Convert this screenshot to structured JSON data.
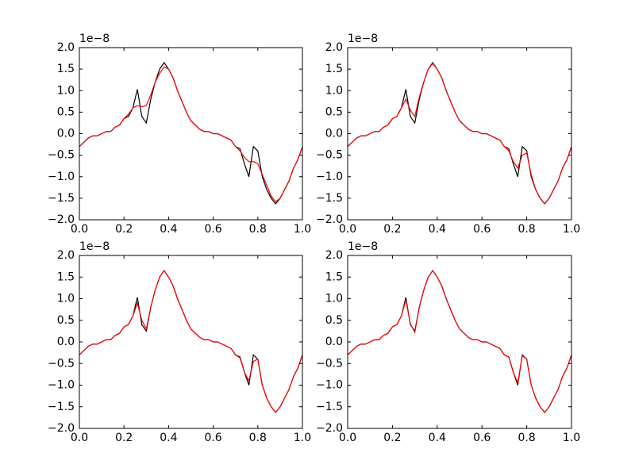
{
  "chart_data": [
    {
      "type": "line",
      "y_offset_label": "1e−8",
      "x": [
        0,
        0.02,
        0.04,
        0.06,
        0.08,
        0.1,
        0.12,
        0.14,
        0.16,
        0.18,
        0.2,
        0.22,
        0.24,
        0.26,
        0.28,
        0.3,
        0.32,
        0.34,
        0.36,
        0.38,
        0.4,
        0.42,
        0.44,
        0.46,
        0.48,
        0.5,
        0.52,
        0.54,
        0.56,
        0.58,
        0.6,
        0.62,
        0.64,
        0.66,
        0.68,
        0.7,
        0.72,
        0.74,
        0.76,
        0.78,
        0.8,
        0.82,
        0.84,
        0.86,
        0.88,
        0.9,
        0.92,
        0.94,
        0.96,
        0.98,
        1
      ],
      "xlim": [
        0,
        1
      ],
      "xticks": [
        {
          "value": 0,
          "label": "0.0"
        },
        0.2,
        0.4,
        0.6,
        0.8,
        {
          "value": 1,
          "label": "1.0"
        }
      ],
      "ylim": [
        -2,
        2
      ],
      "yticks": [
        {
          "value": -2,
          "label": "−2.0"
        },
        {
          "value": -1.5,
          "label": "−1.5"
        },
        {
          "value": -1,
          "label": "−1.0"
        },
        {
          "value": -0.5,
          "label": "−0.5"
        },
        {
          "value": 0,
          "label": "0.0"
        },
        0.5,
        {
          "value": 1,
          "label": "1.0"
        },
        1.5,
        {
          "value": 2,
          "label": "2.0"
        }
      ],
      "series": [
        {
          "color": "#000000",
          "values": [
            -0.3,
            -0.2,
            -0.1,
            -0.05,
            -0.05,
            0,
            0.05,
            0.05,
            0.15,
            0.2,
            0.35,
            0.4,
            0.6,
            1.03,
            0.4,
            0.25,
            0.8,
            1.2,
            1.5,
            1.65,
            1.5,
            1.3,
            1,
            0.75,
            0.5,
            0.3,
            0.2,
            0.1,
            0.05,
            0.05,
            0,
            0,
            -0.05,
            -0.1,
            -0.15,
            -0.3,
            -0.35,
            -0.7,
            -1,
            -0.3,
            -0.4,
            -1,
            -1.3,
            -1.5,
            -1.63,
            -1.5,
            -1.3,
            -1.1,
            -0.8,
            -0.6,
            -0.3
          ]
        },
        {
          "color": "#ff0000",
          "values": [
            -0.3,
            -0.2,
            -0.1,
            -0.05,
            -0.05,
            0,
            0.05,
            0.05,
            0.15,
            0.2,
            0.35,
            0.45,
            0.6,
            0.65,
            0.63,
            0.65,
            0.9,
            1.2,
            1.4,
            1.55,
            1.5,
            1.3,
            1,
            0.75,
            0.5,
            0.3,
            0.2,
            0.1,
            0.05,
            0.05,
            0,
            0,
            -0.05,
            -0.1,
            -0.15,
            -0.3,
            -0.4,
            -0.55,
            -0.65,
            -0.65,
            -0.7,
            -0.95,
            -1.2,
            -1.45,
            -1.58,
            -1.5,
            -1.3,
            -1.1,
            -0.8,
            -0.6,
            -0.3
          ]
        }
      ]
    },
    {
      "type": "line",
      "y_offset_label": "1e−8",
      "x": [
        0,
        0.02,
        0.04,
        0.06,
        0.08,
        0.1,
        0.12,
        0.14,
        0.16,
        0.18,
        0.2,
        0.22,
        0.24,
        0.26,
        0.28,
        0.3,
        0.32,
        0.34,
        0.36,
        0.38,
        0.4,
        0.42,
        0.44,
        0.46,
        0.48,
        0.5,
        0.52,
        0.54,
        0.56,
        0.58,
        0.6,
        0.62,
        0.64,
        0.66,
        0.68,
        0.7,
        0.72,
        0.74,
        0.76,
        0.78,
        0.8,
        0.82,
        0.84,
        0.86,
        0.88,
        0.9,
        0.92,
        0.94,
        0.96,
        0.98,
        1
      ],
      "xlim": [
        0,
        1
      ],
      "xticks": [
        {
          "value": 0,
          "label": "0.0"
        },
        0.2,
        0.4,
        0.6,
        0.8,
        {
          "value": 1,
          "label": "1.0"
        }
      ],
      "ylim": [
        -2,
        2
      ],
      "yticks": [
        {
          "value": -2,
          "label": "−2.0"
        },
        {
          "value": -1.5,
          "label": "−1.5"
        },
        {
          "value": -1,
          "label": "−1.0"
        },
        {
          "value": -0.5,
          "label": "−0.5"
        },
        {
          "value": 0,
          "label": "0.0"
        },
        0.5,
        {
          "value": 1,
          "label": "1.0"
        },
        1.5,
        {
          "value": 2,
          "label": "2.0"
        }
      ],
      "series": [
        {
          "color": "#000000",
          "values": [
            -0.3,
            -0.2,
            -0.1,
            -0.05,
            -0.05,
            0,
            0.05,
            0.05,
            0.15,
            0.2,
            0.35,
            0.4,
            0.6,
            1.03,
            0.4,
            0.25,
            0.8,
            1.2,
            1.5,
            1.65,
            1.5,
            1.3,
            1,
            0.75,
            0.5,
            0.3,
            0.2,
            0.1,
            0.05,
            0.05,
            0,
            0,
            -0.05,
            -0.1,
            -0.15,
            -0.3,
            -0.35,
            -0.7,
            -1,
            -0.3,
            -0.4,
            -1,
            -1.3,
            -1.5,
            -1.63,
            -1.5,
            -1.3,
            -1.1,
            -0.8,
            -0.6,
            -0.3
          ]
        },
        {
          "color": "#ff0000",
          "values": [
            -0.3,
            -0.2,
            -0.1,
            -0.05,
            -0.05,
            0,
            0.05,
            0.05,
            0.15,
            0.2,
            0.35,
            0.4,
            0.6,
            0.8,
            0.55,
            0.4,
            0.85,
            1.2,
            1.5,
            1.63,
            1.5,
            1.3,
            1,
            0.75,
            0.5,
            0.3,
            0.2,
            0.1,
            0.05,
            0.05,
            0,
            0,
            -0.05,
            -0.1,
            -0.15,
            -0.3,
            -0.4,
            -0.65,
            -0.8,
            -0.5,
            -0.45,
            -0.95,
            -1.3,
            -1.5,
            -1.63,
            -1.5,
            -1.3,
            -1.1,
            -0.8,
            -0.6,
            -0.3
          ]
        }
      ]
    },
    {
      "type": "line",
      "y_offset_label": "1e−8",
      "x": [
        0,
        0.02,
        0.04,
        0.06,
        0.08,
        0.1,
        0.12,
        0.14,
        0.16,
        0.18,
        0.2,
        0.22,
        0.24,
        0.26,
        0.28,
        0.3,
        0.32,
        0.34,
        0.36,
        0.38,
        0.4,
        0.42,
        0.44,
        0.46,
        0.48,
        0.5,
        0.52,
        0.54,
        0.56,
        0.58,
        0.6,
        0.62,
        0.64,
        0.66,
        0.68,
        0.7,
        0.72,
        0.74,
        0.76,
        0.78,
        0.8,
        0.82,
        0.84,
        0.86,
        0.88,
        0.9,
        0.92,
        0.94,
        0.96,
        0.98,
        1
      ],
      "xlim": [
        0,
        1
      ],
      "xticks": [
        {
          "value": 0,
          "label": "0.0"
        },
        0.2,
        0.4,
        0.6,
        0.8,
        {
          "value": 1,
          "label": "1.0"
        }
      ],
      "ylim": [
        -2,
        2
      ],
      "yticks": [
        {
          "value": -2,
          "label": "−2.0"
        },
        {
          "value": -1.5,
          "label": "−1.5"
        },
        {
          "value": -1,
          "label": "−1.0"
        },
        {
          "value": -0.5,
          "label": "−0.5"
        },
        {
          "value": 0,
          "label": "0.0"
        },
        0.5,
        {
          "value": 1,
          "label": "1.0"
        },
        1.5,
        {
          "value": 2,
          "label": "2.0"
        }
      ],
      "series": [
        {
          "color": "#000000",
          "values": [
            -0.3,
            -0.2,
            -0.1,
            -0.05,
            -0.05,
            0,
            0.05,
            0.05,
            0.15,
            0.2,
            0.35,
            0.4,
            0.6,
            1.03,
            0.4,
            0.25,
            0.8,
            1.2,
            1.5,
            1.65,
            1.5,
            1.3,
            1,
            0.75,
            0.5,
            0.3,
            0.2,
            0.1,
            0.05,
            0.05,
            0,
            0,
            -0.05,
            -0.1,
            -0.15,
            -0.3,
            -0.35,
            -0.7,
            -1,
            -0.3,
            -0.4,
            -1,
            -1.3,
            -1.5,
            -1.63,
            -1.5,
            -1.3,
            -1.1,
            -0.8,
            -0.6,
            -0.3
          ]
        },
        {
          "color": "#ff0000",
          "values": [
            -0.3,
            -0.2,
            -0.1,
            -0.05,
            -0.05,
            0,
            0.05,
            0.05,
            0.15,
            0.2,
            0.35,
            0.4,
            0.6,
            0.9,
            0.5,
            0.3,
            0.8,
            1.2,
            1.5,
            1.65,
            1.5,
            1.3,
            1,
            0.75,
            0.5,
            0.3,
            0.2,
            0.1,
            0.05,
            0.05,
            0,
            0,
            -0.05,
            -0.1,
            -0.15,
            -0.3,
            -0.37,
            -0.7,
            -0.9,
            -0.45,
            -0.4,
            -1,
            -1.3,
            -1.5,
            -1.63,
            -1.5,
            -1.3,
            -1.1,
            -0.8,
            -0.6,
            -0.3
          ]
        }
      ]
    },
    {
      "type": "line",
      "y_offset_label": "1e−8",
      "x": [
        0,
        0.02,
        0.04,
        0.06,
        0.08,
        0.1,
        0.12,
        0.14,
        0.16,
        0.18,
        0.2,
        0.22,
        0.24,
        0.26,
        0.28,
        0.3,
        0.32,
        0.34,
        0.36,
        0.38,
        0.4,
        0.42,
        0.44,
        0.46,
        0.48,
        0.5,
        0.52,
        0.54,
        0.56,
        0.58,
        0.6,
        0.62,
        0.64,
        0.66,
        0.68,
        0.7,
        0.72,
        0.74,
        0.76,
        0.78,
        0.8,
        0.82,
        0.84,
        0.86,
        0.88,
        0.9,
        0.92,
        0.94,
        0.96,
        0.98,
        1
      ],
      "xlim": [
        0,
        1
      ],
      "xticks": [
        {
          "value": 0,
          "label": "0.0"
        },
        0.2,
        0.4,
        0.6,
        0.8,
        {
          "value": 1,
          "label": "1.0"
        }
      ],
      "ylim": [
        -2,
        2
      ],
      "yticks": [
        {
          "value": -2,
          "label": "−2.0"
        },
        {
          "value": -1.5,
          "label": "−1.5"
        },
        {
          "value": -1,
          "label": "−1.0"
        },
        {
          "value": -0.5,
          "label": "−0.5"
        },
        {
          "value": 0,
          "label": "0.0"
        },
        0.5,
        {
          "value": 1,
          "label": "1.0"
        },
        1.5,
        {
          "value": 2,
          "label": "2.0"
        }
      ],
      "series": [
        {
          "color": "#000000",
          "values": [
            -0.3,
            -0.2,
            -0.1,
            -0.05,
            -0.05,
            0,
            0.05,
            0.05,
            0.15,
            0.2,
            0.35,
            0.4,
            0.6,
            1.03,
            0.4,
            0.25,
            0.8,
            1.2,
            1.5,
            1.65,
            1.5,
            1.3,
            1,
            0.75,
            0.5,
            0.3,
            0.2,
            0.1,
            0.05,
            0.05,
            0,
            0,
            -0.05,
            -0.1,
            -0.15,
            -0.3,
            -0.35,
            -0.7,
            -1,
            -0.3,
            -0.4,
            -1,
            -1.3,
            -1.5,
            -1.63,
            -1.5,
            -1.3,
            -1.1,
            -0.8,
            -0.6,
            -0.3
          ]
        },
        {
          "color": "#ff0000",
          "values": [
            -0.3,
            -0.2,
            -0.1,
            -0.05,
            -0.05,
            0,
            0.05,
            0.05,
            0.15,
            0.2,
            0.35,
            0.4,
            0.6,
            0.97,
            0.42,
            0.22,
            0.8,
            1.2,
            1.5,
            1.65,
            1.5,
            1.3,
            1,
            0.75,
            0.5,
            0.3,
            0.2,
            0.1,
            0.05,
            0.05,
            0,
            0,
            -0.05,
            -0.1,
            -0.15,
            -0.3,
            -0.35,
            -0.7,
            -0.95,
            -0.32,
            -0.4,
            -1,
            -1.3,
            -1.5,
            -1.63,
            -1.5,
            -1.3,
            -1.1,
            -0.8,
            -0.6,
            -0.3
          ]
        }
      ]
    }
  ]
}
